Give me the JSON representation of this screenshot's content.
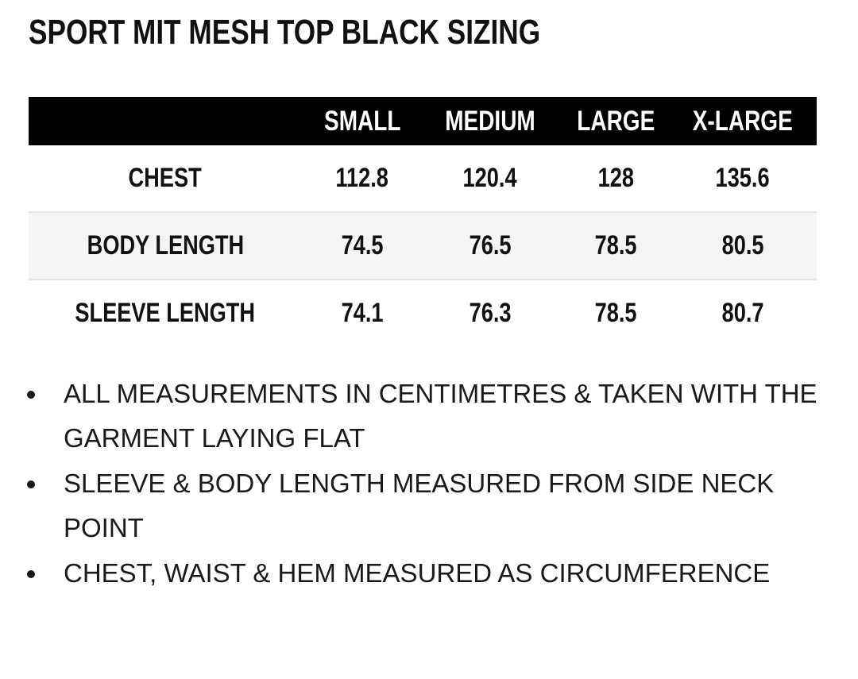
{
  "title": "SPORT MIT MESH TOP BLACK SIZING",
  "table": {
    "columns": [
      "",
      "SMALL",
      "MEDIUM",
      "LARGE",
      "X-LARGE"
    ],
    "rows": [
      {
        "label": "CHEST",
        "values": [
          "112.8",
          "120.4",
          "128",
          "135.6"
        ]
      },
      {
        "label": "BODY LENGTH",
        "values": [
          "74.5",
          "76.5",
          "78.5",
          "80.5"
        ]
      },
      {
        "label": "SLEEVE LENGTH",
        "values": [
          "74.1",
          "76.3",
          "78.5",
          "80.7"
        ]
      }
    ]
  },
  "notes": [
    "ALL MEASUREMENTS IN CENTIMETRES & TAKEN WITH THE GARMENT LAYING FLAT",
    "SLEEVE & BODY LENGTH MEASURED FROM SIDE NECK POINT",
    "CHEST, WAIST & HEM MEASURED AS CIRCUMFERENCE"
  ],
  "colors": {
    "header_bg": "#000000",
    "header_text": "#ffffff",
    "alt_row_bg": "#f4f4f4"
  }
}
